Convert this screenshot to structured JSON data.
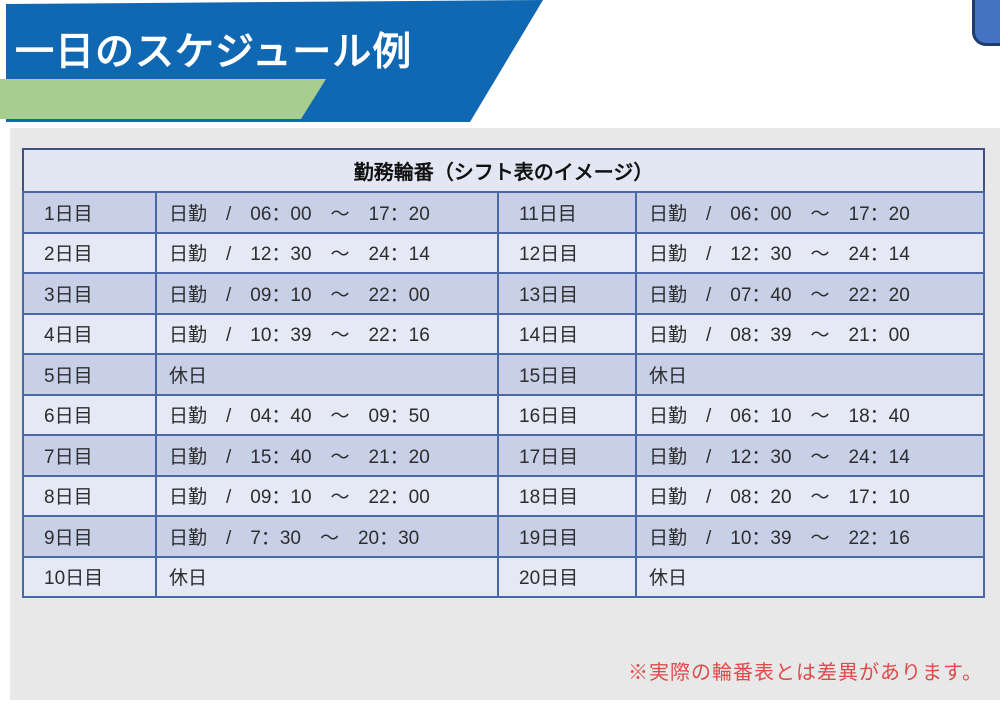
{
  "page": {
    "title": "一日のスケジュール例",
    "note": "※実際の輪番表とは差異があります。"
  },
  "table": {
    "header": "勤務輪番（シフト表のイメージ）",
    "left_rows": [
      {
        "day": "1日目",
        "shift": "日勤　/　06：00　～　17：20"
      },
      {
        "day": "2日目",
        "shift": "日勤　/　12：30　～　24：14"
      },
      {
        "day": "3日目",
        "shift": "日勤　/　09：10　～　22：00"
      },
      {
        "day": "4日目",
        "shift": "日勤　/　10：39　～　22：16"
      },
      {
        "day": "5日目",
        "shift": "休日"
      },
      {
        "day": "6日目",
        "shift": "日勤　/　04：40　～　09：50"
      },
      {
        "day": "7日目",
        "shift": "日勤　/　15：40　～　21：20"
      },
      {
        "day": "8日目",
        "shift": "日勤　/　09：10　～　22：00"
      },
      {
        "day": "9日目",
        "shift": "日勤　/　7：30　～　20：30"
      },
      {
        "day": "10日目",
        "shift": "休日"
      }
    ],
    "right_rows": [
      {
        "day": "11日目",
        "shift": "日勤　/　06：00　～　17：20"
      },
      {
        "day": "12日目",
        "shift": "日勤　/　12：30　～　24：14"
      },
      {
        "day": "13日目",
        "shift": "日勤　/　07：40　～　22：20"
      },
      {
        "day": "14日目",
        "shift": "日勤　/　08：39　～　21：00"
      },
      {
        "day": "15日目",
        "shift": "休日"
      },
      {
        "day": "16日目",
        "shift": "日勤　/　06：10　～　18：40"
      },
      {
        "day": "17日目",
        "shift": "日勤　/　12：30　～　24：14"
      },
      {
        "day": "18日目",
        "shift": "日勤　/　08：20　～　17：10"
      },
      {
        "day": "19日目",
        "shift": "日勤　/　10：39　～　22：16"
      },
      {
        "day": "20日目",
        "shift": "休日"
      }
    ]
  },
  "colors": {
    "banner_blue": "#1068b2",
    "accent_green": "#a7ce8f",
    "tab_blue": "#4573c4",
    "tab_border": "#1e3c6e",
    "panel_gray": "#e8e8e8",
    "grid_blue": "#4a68a6",
    "outer_blue": "#3f5184",
    "dark_row": "#c8d0e8",
    "light_row": "#e5e8f5",
    "header_fill": "#e3e7f4",
    "note_red": "#e04a4a"
  }
}
